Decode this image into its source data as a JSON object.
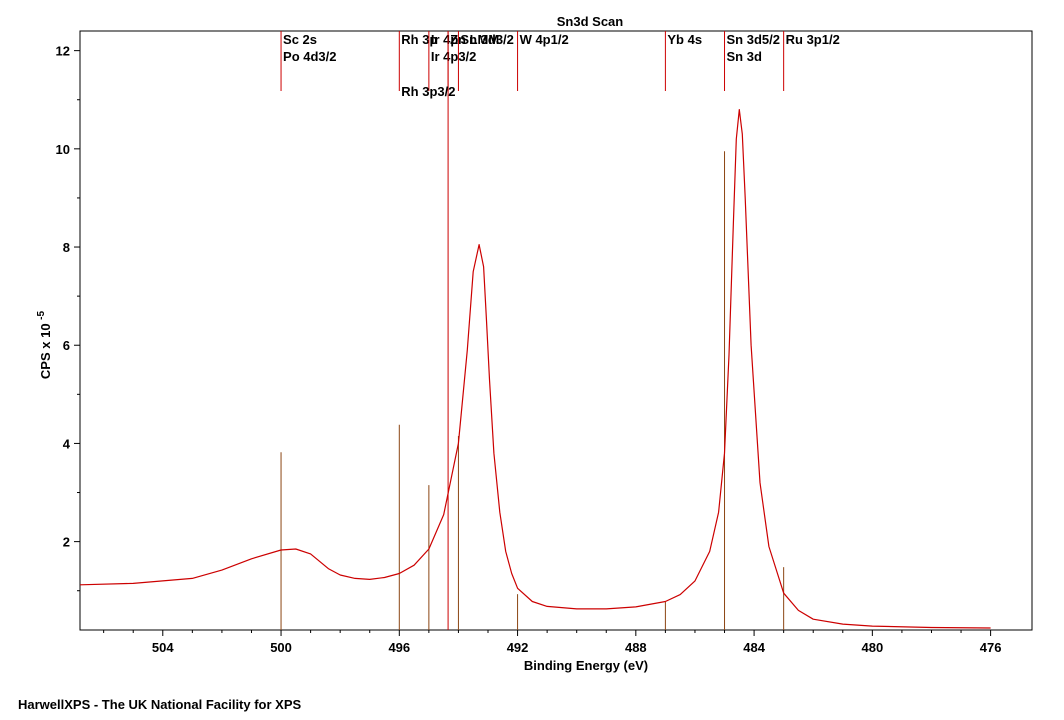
{
  "chart_data": {
    "type": "line",
    "title": "Sn3d Scan",
    "xlabel": "Binding Energy (eV)",
    "ylabel_prefix": "CPS x 10",
    "ylabel_exponent": "-5",
    "x_reversed": true,
    "xlim": [
      506.8,
      474.6
    ],
    "ylim": [
      0.2,
      12.4
    ],
    "x_ticks": [
      504,
      500,
      496,
      492,
      488,
      484,
      480,
      476
    ],
    "y_ticks": [
      2,
      4,
      6,
      8,
      10,
      12
    ],
    "grid": false,
    "series": [
      {
        "color": "#cc0000",
        "x": [
          506.8,
          505.0,
          503.0,
          502.0,
          501.0,
          500.0,
          499.5,
          499.0,
          498.8,
          498.4,
          498.0,
          497.5,
          497.0,
          496.5,
          496.0,
          495.5,
          495.0,
          494.5,
          494.0,
          493.7,
          493.5,
          493.3,
          493.15,
          493.05,
          492.95,
          492.8,
          492.6,
          492.4,
          492.2,
          492.0,
          491.5,
          491.0,
          490.0,
          489.0,
          488.0,
          487.0,
          486.5,
          486.0,
          485.5,
          485.2,
          485.0,
          484.85,
          484.7,
          484.6,
          484.5,
          484.4,
          484.3,
          484.1,
          483.8,
          483.5,
          483.0,
          482.5,
          482.0,
          481.0,
          480.0,
          478.0,
          476.0
        ],
        "y": [
          1.12,
          1.15,
          1.25,
          1.42,
          1.65,
          1.83,
          1.85,
          1.75,
          1.65,
          1.45,
          1.32,
          1.25,
          1.23,
          1.27,
          1.35,
          1.52,
          1.85,
          2.55,
          4.0,
          5.9,
          7.5,
          8.05,
          7.6,
          6.5,
          5.3,
          3.8,
          2.6,
          1.8,
          1.35,
          1.05,
          0.78,
          0.68,
          0.63,
          0.63,
          0.67,
          0.78,
          0.92,
          1.2,
          1.8,
          2.6,
          3.8,
          5.8,
          8.5,
          10.2,
          10.8,
          10.3,
          9.0,
          6.0,
          3.2,
          1.9,
          0.95,
          0.6,
          0.42,
          0.32,
          0.28,
          0.25,
          0.24
        ]
      }
    ],
    "reference_lines": [
      {
        "x": 500.0,
        "height": 3.82,
        "color": "#8b4513",
        "labels": [
          "Sc 2s",
          "Po 4d3/2"
        ],
        "label_color": "#cc0000"
      },
      {
        "x": 496.0,
        "height": 4.38,
        "color": "#8b4513",
        "labels": [
          "Rh 3p"
        ],
        "label_color": "#cc0000"
      },
      {
        "x": 495.0,
        "height": 3.15,
        "color": "#8b4513",
        "labels": [
          "Ir 4p",
          "Ir 4p3/2"
        ],
        "label_color": "#cc0000"
      },
      {
        "x": 494.35,
        "height": 12.4,
        "color": "#cc0000",
        "labels": [
          "Zn LMM"
        ],
        "label_color": "#cc0000"
      },
      {
        "x": 494.0,
        "height": 4.15,
        "color": "#8b4513",
        "labels": [
          "Sn 3d3/2"
        ],
        "label_color": "#cc0000"
      },
      {
        "x": 492.0,
        "height": 0.93,
        "color": "#8b4513",
        "labels": [
          "W 4p1/2"
        ],
        "label_color": "#cc0000"
      },
      {
        "x": 487.0,
        "height": 0.77,
        "color": "#8b4513",
        "labels": [
          "Yb 4s"
        ],
        "label_color": "#cc0000"
      },
      {
        "x": 485.0,
        "height": 9.95,
        "color": "#8b4513",
        "labels": [
          "Sn 3d5/2",
          "Sn 3d"
        ],
        "label_color": "#cc0000"
      },
      {
        "x": 483.0,
        "height": 1.48,
        "color": "#8b4513",
        "labels": [
          "Ru 3p1/2"
        ],
        "label_color": "#cc0000"
      }
    ],
    "stacked_label": {
      "x": 496.0,
      "text": "Rh 3p3/2"
    }
  },
  "footer": "HarwellXPS - The UK National Facility for XPS"
}
